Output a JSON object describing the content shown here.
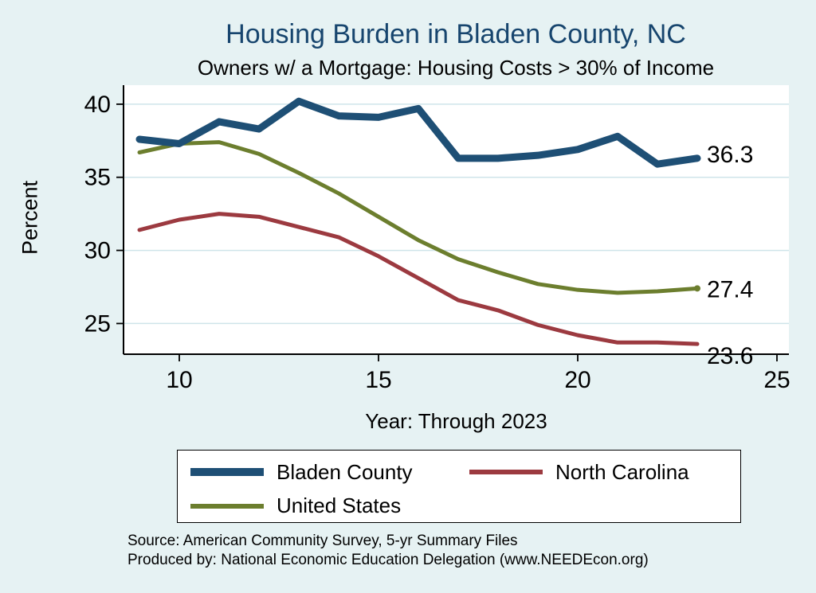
{
  "chart_data": {
    "type": "line",
    "title": "Housing Burden in Bladen County, NC",
    "subtitle": "Owners w/ a Mortgage: Housing Costs > 30% of Income",
    "xlabel": "Year: Through 2023",
    "ylabel": "Percent",
    "x": [
      9,
      10,
      11,
      12,
      13,
      14,
      15,
      16,
      17,
      18,
      19,
      20,
      21,
      22,
      23
    ],
    "xlim": [
      8.6,
      25.3
    ],
    "ylim": [
      22.9,
      41.3
    ],
    "xticks": [
      10,
      15,
      20,
      25
    ],
    "yticks": [
      25,
      30,
      35,
      40
    ],
    "grid": true,
    "legend_position": "bottom",
    "series": [
      {
        "name": "Bladen County",
        "color": "#1e4f75",
        "width": 9,
        "end_label": "36.3",
        "label_dy": -6,
        "values": [
          37.6,
          37.3,
          38.8,
          38.3,
          40.2,
          39.2,
          39.1,
          39.7,
          36.3,
          36.3,
          36.5,
          36.9,
          37.8,
          35.9,
          36.3
        ]
      },
      {
        "name": "North Carolina",
        "color": "#9c3a40",
        "width": 5,
        "end_label": "23.6",
        "label_dy": 14,
        "values": [
          31.4,
          32.1,
          32.5,
          32.3,
          31.6,
          30.9,
          29.6,
          28.1,
          26.6,
          25.9,
          24.9,
          24.2,
          23.7,
          23.7,
          23.6
        ]
      },
      {
        "name": "United States",
        "color": "#6c7e2e",
        "width": 5,
        "end_label": "27.4",
        "end_marker": true,
        "label_dy": 0,
        "values": [
          36.7,
          37.3,
          37.4,
          36.6,
          35.3,
          33.9,
          32.3,
          30.7,
          29.4,
          28.5,
          27.7,
          27.3,
          27.1,
          27.2,
          27.4
        ]
      }
    ]
  },
  "source": {
    "line1": "Source: American Community Survey, 5-yr Summary Files",
    "line2": "Produced by: National Economic Education Delegation (www.NEEDEcon.org)"
  },
  "colors": {
    "figure_background": "#e6f2f3",
    "plot_background": "#ffffff",
    "gridline": "#cfe4ea",
    "title": "#17456e",
    "axis": "#000000"
  }
}
